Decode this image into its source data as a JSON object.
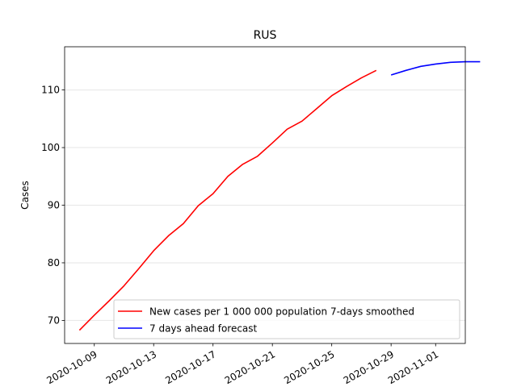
{
  "chart_data": {
    "type": "line",
    "title": "RUS",
    "xlabel": "",
    "ylabel": "Cases",
    "x_type": "date",
    "xlim": [
      "2020-10-07",
      "2020-11-03"
    ],
    "ylim": [
      66,
      117.5
    ],
    "y_ticks": [
      70,
      80,
      90,
      100,
      110
    ],
    "x_ticks": [
      "2020-10-09",
      "2020-10-13",
      "2020-10-17",
      "2020-10-21",
      "2020-10-25",
      "2020-10-29",
      "2020-11-01"
    ],
    "grid": "horizontal",
    "legend_position": "lower-right",
    "series": [
      {
        "name": "New cases per 1 000 000 population 7-days smoothed",
        "color": "#ff0000",
        "points": [
          [
            "2020-10-08",
            68.3
          ],
          [
            "2020-10-09",
            70.9
          ],
          [
            "2020-10-10",
            73.4
          ],
          [
            "2020-10-11",
            76.0
          ],
          [
            "2020-10-12",
            79.0
          ],
          [
            "2020-10-13",
            82.1
          ],
          [
            "2020-10-14",
            84.7
          ],
          [
            "2020-10-15",
            86.8
          ],
          [
            "2020-10-16",
            89.9
          ],
          [
            "2020-10-17",
            92.0
          ],
          [
            "2020-10-18",
            95.0
          ],
          [
            "2020-10-19",
            97.1
          ],
          [
            "2020-10-20",
            98.5
          ],
          [
            "2020-10-21",
            100.8
          ],
          [
            "2020-10-22",
            103.2
          ],
          [
            "2020-10-23",
            104.6
          ],
          [
            "2020-10-24",
            106.8
          ],
          [
            "2020-10-25",
            109.0
          ],
          [
            "2020-10-26",
            110.6
          ],
          [
            "2020-10-27",
            112.1
          ],
          [
            "2020-10-28",
            113.4
          ]
        ]
      },
      {
        "name": "7 days ahead forecast",
        "color": "#0000ff",
        "points": [
          [
            "2020-10-29",
            112.6
          ],
          [
            "2020-10-30",
            113.4
          ],
          [
            "2020-10-31",
            114.1
          ],
          [
            "2020-11-01",
            114.5
          ],
          [
            "2020-11-02",
            114.8
          ],
          [
            "2020-11-03",
            114.9
          ],
          [
            "2020-11-04",
            114.9
          ]
        ]
      }
    ]
  }
}
